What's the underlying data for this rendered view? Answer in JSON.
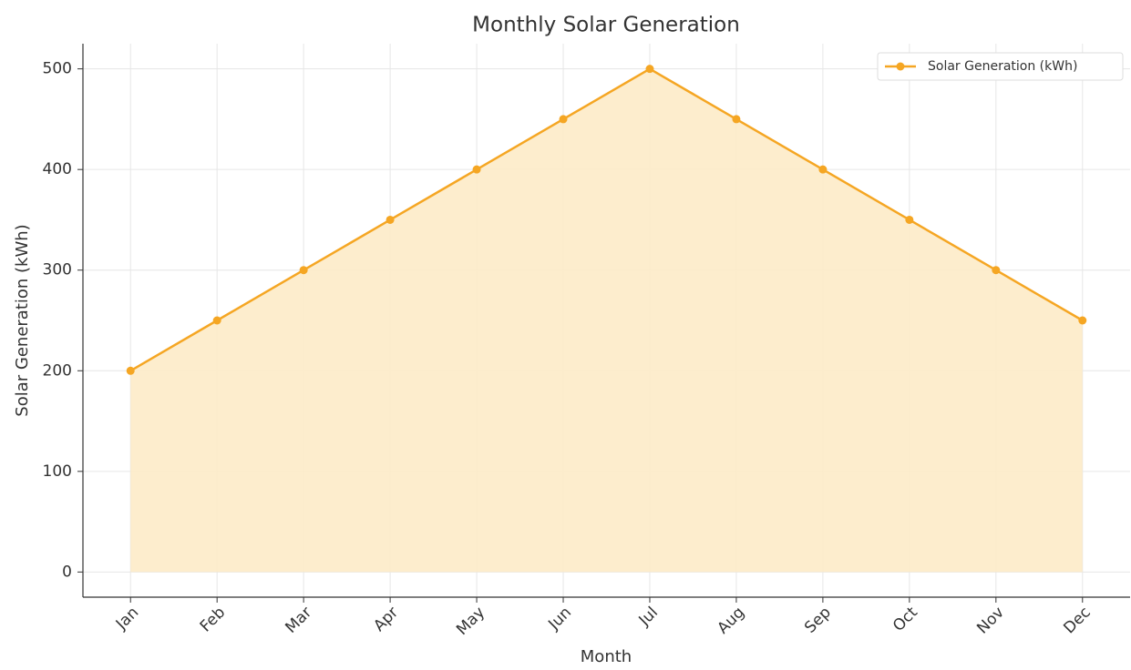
{
  "chart_data": {
    "type": "line",
    "title": "Monthly Solar Generation",
    "x_label": "Month",
    "y_label": "Solar Generation (kWh)",
    "categories": [
      "Jan",
      "Feb",
      "Mar",
      "Apr",
      "May",
      "Jun",
      "Jul",
      "Aug",
      "Sep",
      "Oct",
      "Nov",
      "Dec"
    ],
    "series": [
      {
        "name": "Solar Generation (kWh)",
        "color": "#f5a623",
        "fill": "#fdebc8",
        "values": [
          200,
          250,
          300,
          350,
          400,
          450,
          500,
          450,
          400,
          350,
          300,
          250
        ]
      }
    ],
    "ylim": [
      -25,
      525
    ],
    "yticks": [
      0,
      100,
      200,
      300,
      400,
      500
    ],
    "grid": true,
    "legend": "upper right"
  }
}
